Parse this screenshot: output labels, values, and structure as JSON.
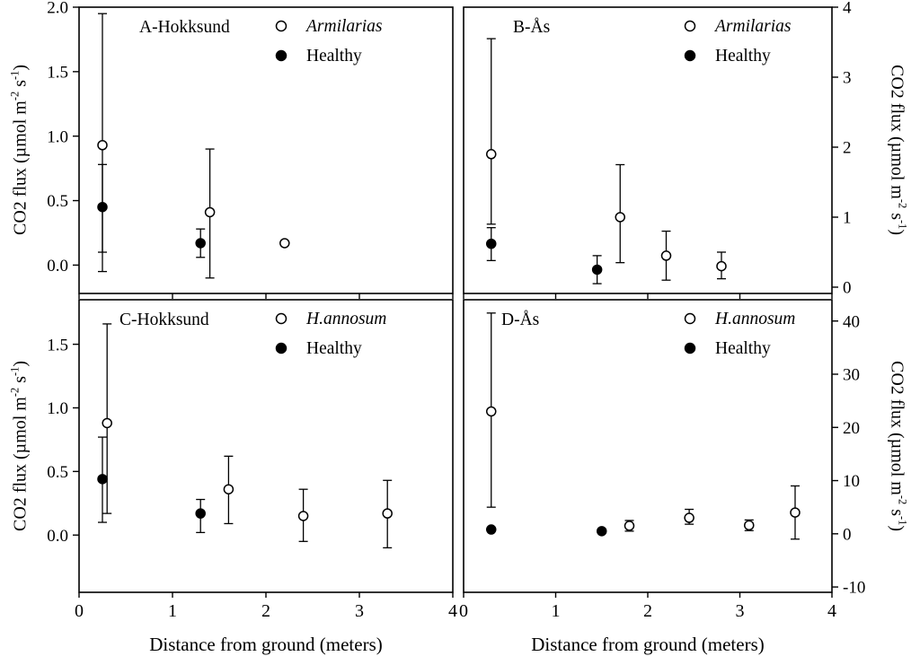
{
  "chart_data": {
    "type": "scatter",
    "title": "",
    "xlabel": "Distance from ground (meters)",
    "ylabel": "CO2 flux (µmol m-2 s-1)",
    "ylabel_parts": [
      {
        "text": "CO2 flux (µmol m"
      },
      {
        "text": "-2",
        "sup": true
      },
      {
        "text": " s"
      },
      {
        "text": "-1",
        "sup": true
      },
      {
        "text": ")"
      }
    ],
    "xlim": [
      0,
      4
    ],
    "xticks": [
      0,
      1,
      2,
      3,
      4
    ],
    "grid": false,
    "legend_position": "top-right-inside",
    "panels": [
      {
        "id": "A",
        "label": "A-Hokksund",
        "axis_side": "left",
        "ylim": [
          -0.22,
          2.0
        ],
        "yticks": [
          {
            "v": 0.0,
            "t": "0.0"
          },
          {
            "v": 0.5,
            "t": "0.5"
          },
          {
            "v": 1.0,
            "t": "1.0"
          },
          {
            "v": 1.5,
            "t": "1.5"
          },
          {
            "v": 2.0,
            "t": "2.0"
          }
        ],
        "series": [
          {
            "name": "Armilarias",
            "marker": "open",
            "italic": true,
            "points": [
              {
                "x": 0.25,
                "y": 0.93,
                "lo": 0.1,
                "hi": 1.95
              },
              {
                "x": 1.4,
                "y": 0.41,
                "lo": -0.1,
                "hi": 0.9
              },
              {
                "x": 2.2,
                "y": 0.17
              }
            ]
          },
          {
            "name": "Healthy",
            "marker": "filled",
            "italic": false,
            "points": [
              {
                "x": 0.25,
                "y": 0.45,
                "lo": -0.05,
                "hi": 0.78
              },
              {
                "x": 1.3,
                "y": 0.17,
                "lo": 0.06,
                "hi": 0.28
              }
            ]
          }
        ]
      },
      {
        "id": "B",
        "label": "B-Ås",
        "axis_side": "right",
        "ylim": [
          -0.09,
          4.0
        ],
        "yticks": [
          {
            "v": 0,
            "t": "0"
          },
          {
            "v": 1,
            "t": "1"
          },
          {
            "v": 2,
            "t": "2"
          },
          {
            "v": 3,
            "t": "3"
          },
          {
            "v": 4,
            "t": "4"
          }
        ],
        "series": [
          {
            "name": "Armilarias",
            "marker": "open",
            "italic": true,
            "points": [
              {
                "x": 0.3,
                "y": 1.9,
                "lo": 0.9,
                "hi": 3.55
              },
              {
                "x": 1.7,
                "y": 1.0,
                "lo": 0.35,
                "hi": 1.75
              },
              {
                "x": 2.2,
                "y": 0.45,
                "lo": 0.1,
                "hi": 0.8
              },
              {
                "x": 2.8,
                "y": 0.3,
                "lo": 0.12,
                "hi": 0.5
              }
            ]
          },
          {
            "name": "Healthy",
            "marker": "filled",
            "italic": false,
            "points": [
              {
                "x": 0.3,
                "y": 0.62,
                "lo": 0.38,
                "hi": 0.85
              },
              {
                "x": 1.45,
                "y": 0.25,
                "lo": 0.05,
                "hi": 0.45
              }
            ]
          }
        ]
      },
      {
        "id": "C",
        "label": "C-Hokksund",
        "axis_side": "left",
        "ylim": [
          -0.45,
          1.85
        ],
        "yticks": [
          {
            "v": 0.0,
            "t": "0.0"
          },
          {
            "v": 0.5,
            "t": "0.5"
          },
          {
            "v": 1.0,
            "t": "1.0"
          },
          {
            "v": 1.5,
            "t": "1.5"
          }
        ],
        "series": [
          {
            "name": "H.annosum",
            "marker": "open",
            "italic": true,
            "points": [
              {
                "x": 0.3,
                "y": 0.88,
                "lo": 0.17,
                "hi": 1.66
              },
              {
                "x": 1.6,
                "y": 0.36,
                "lo": 0.09,
                "hi": 0.62
              },
              {
                "x": 2.4,
                "y": 0.15,
                "lo": -0.05,
                "hi": 0.36
              },
              {
                "x": 3.3,
                "y": 0.17,
                "lo": -0.1,
                "hi": 0.43
              }
            ]
          },
          {
            "name": "Healthy",
            "marker": "filled",
            "italic": false,
            "points": [
              {
                "x": 0.25,
                "y": 0.44,
                "lo": 0.1,
                "hi": 0.77
              },
              {
                "x": 1.3,
                "y": 0.17,
                "lo": 0.02,
                "hi": 0.28
              }
            ]
          }
        ]
      },
      {
        "id": "D",
        "label": "D-Ås",
        "axis_side": "right",
        "ylim": [
          -11,
          44
        ],
        "yticks": [
          {
            "v": -10,
            "t": "-10"
          },
          {
            "v": 0,
            "t": "0"
          },
          {
            "v": 10,
            "t": "10"
          },
          {
            "v": 20,
            "t": "20"
          },
          {
            "v": 30,
            "t": "30"
          },
          {
            "v": 40,
            "t": "40"
          }
        ],
        "series": [
          {
            "name": "H.annosum",
            "marker": "open",
            "italic": true,
            "points": [
              {
                "x": 0.3,
                "y": 23.0,
                "lo": 5.0,
                "hi": 41.5
              },
              {
                "x": 1.8,
                "y": 1.5,
                "lo": 0.5,
                "hi": 2.5
              },
              {
                "x": 2.45,
                "y": 3.0,
                "lo": 1.8,
                "hi": 4.6
              },
              {
                "x": 3.1,
                "y": 1.6,
                "lo": 0.6,
                "hi": 2.6
              },
              {
                "x": 3.6,
                "y": 4.0,
                "lo": -1.0,
                "hi": 9.0
              }
            ]
          },
          {
            "name": "Healthy",
            "marker": "filled",
            "italic": false,
            "points": [
              {
                "x": 0.3,
                "y": 0.8
              },
              {
                "x": 1.5,
                "y": 0.5
              }
            ]
          }
        ]
      }
    ]
  }
}
